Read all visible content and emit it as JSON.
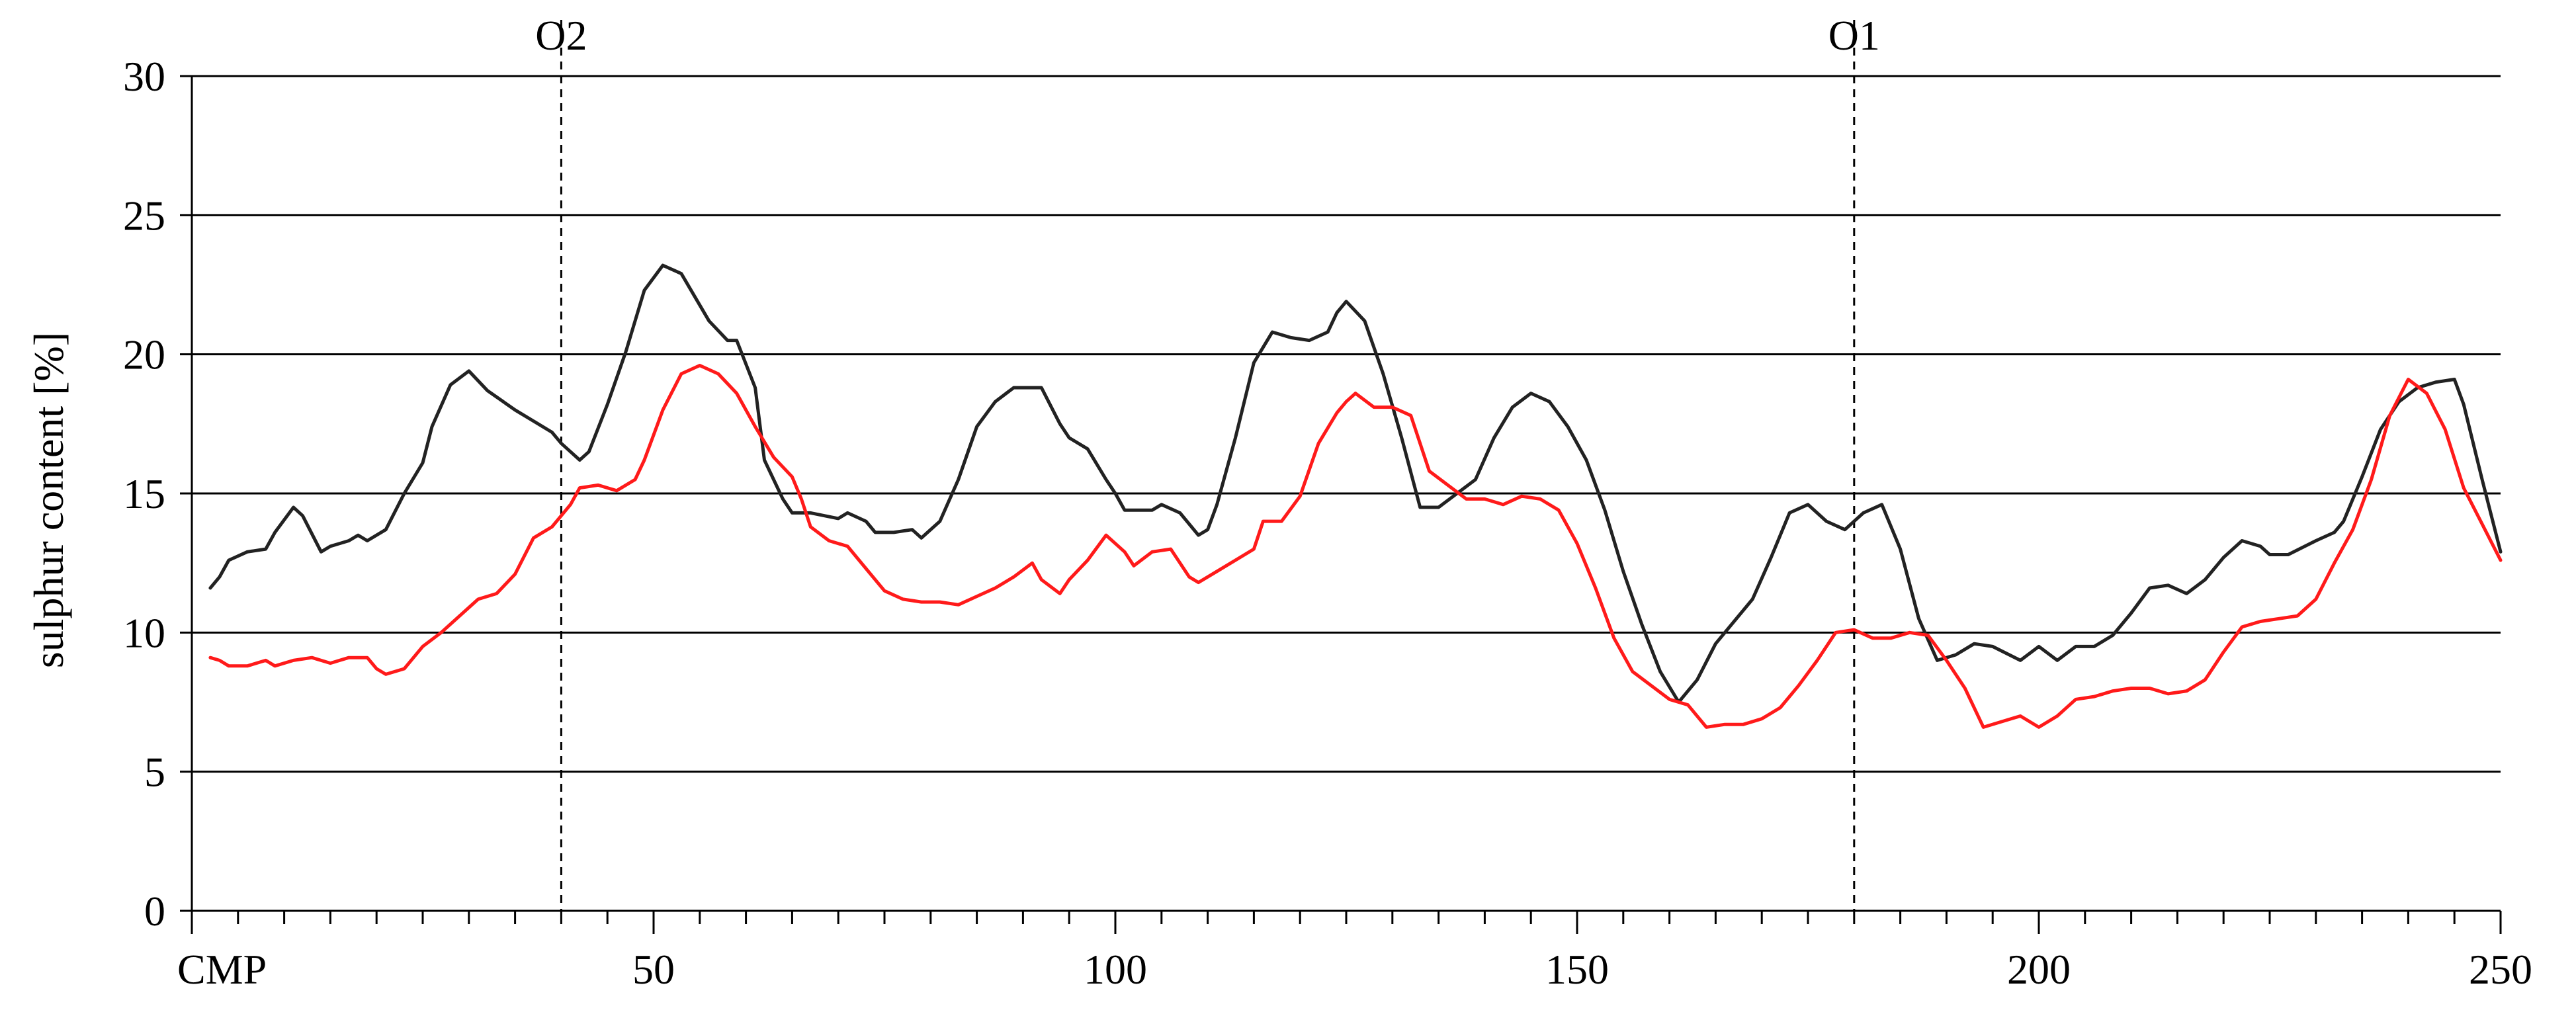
{
  "chart_data": {
    "type": "line",
    "title": "",
    "xlabel": "",
    "ylabel": "sulphur content [%]",
    "xlim": [
      0,
      250
    ],
    "ylim": [
      0,
      30
    ],
    "x_ticks": [
      0,
      50,
      100,
      150,
      200,
      250
    ],
    "x_tick_labels": [
      "CMP",
      "50",
      "100",
      "150",
      "200",
      "250"
    ],
    "x_minor_step": 5,
    "y_ticks": [
      0,
      5,
      10,
      15,
      20,
      25,
      30
    ],
    "grid": "horizontal",
    "markers": [
      {
        "label": "O2",
        "x": 40
      },
      {
        "label": "O1",
        "x": 180
      }
    ],
    "series": [
      {
        "color": "#222222",
        "points": [
          [
            2,
            11.6
          ],
          [
            3,
            12
          ],
          [
            4,
            12.6
          ],
          [
            6,
            12.9
          ],
          [
            8,
            13
          ],
          [
            9,
            13.6
          ],
          [
            11,
            14.5
          ],
          [
            12,
            14.2
          ],
          [
            14,
            12.9
          ],
          [
            15,
            13.1
          ],
          [
            17,
            13.3
          ],
          [
            18,
            13.5
          ],
          [
            19,
            13.3
          ],
          [
            21,
            13.7
          ],
          [
            23,
            15
          ],
          [
            25,
            16.1
          ],
          [
            26,
            17.4
          ],
          [
            28,
            18.9
          ],
          [
            30,
            19.4
          ],
          [
            32,
            18.7
          ],
          [
            35,
            18
          ],
          [
            37,
            17.6
          ],
          [
            39,
            17.2
          ],
          [
            40,
            16.8
          ],
          [
            42,
            16.2
          ],
          [
            43,
            16.5
          ],
          [
            45,
            18.2
          ],
          [
            47,
            20.1
          ],
          [
            49,
            22.3
          ],
          [
            51,
            23.2
          ],
          [
            53,
            22.9
          ],
          [
            56,
            21.2
          ],
          [
            58,
            20.5
          ],
          [
            59,
            20.5
          ],
          [
            61,
            18.8
          ],
          [
            62,
            16.2
          ],
          [
            64,
            14.8
          ],
          [
            65,
            14.3
          ],
          [
            67,
            14.3
          ],
          [
            70,
            14.1
          ],
          [
            71,
            14.3
          ],
          [
            73,
            14
          ],
          [
            74,
            13.6
          ],
          [
            76,
            13.6
          ],
          [
            78,
            13.7
          ],
          [
            79,
            13.4
          ],
          [
            81,
            14
          ],
          [
            83,
            15.5
          ],
          [
            85,
            17.4
          ],
          [
            87,
            18.3
          ],
          [
            89,
            18.8
          ],
          [
            92,
            18.8
          ],
          [
            94,
            17.5
          ],
          [
            95,
            17
          ],
          [
            97,
            16.6
          ],
          [
            99,
            15.5
          ],
          [
            100,
            15
          ],
          [
            101,
            14.4
          ],
          [
            104,
            14.4
          ],
          [
            105,
            14.6
          ],
          [
            107,
            14.3
          ],
          [
            109,
            13.5
          ],
          [
            110,
            13.7
          ],
          [
            111,
            14.6
          ],
          [
            113,
            17
          ],
          [
            115,
            19.7
          ],
          [
            117,
            20.8
          ],
          [
            119,
            20.6
          ],
          [
            121,
            20.5
          ],
          [
            123,
            20.8
          ],
          [
            124,
            21.5
          ],
          [
            125,
            21.9
          ],
          [
            127,
            21.2
          ],
          [
            129,
            19.3
          ],
          [
            131,
            17
          ],
          [
            133,
            14.5
          ],
          [
            135,
            14.5
          ],
          [
            137,
            15
          ],
          [
            139,
            15.5
          ],
          [
            141,
            17
          ],
          [
            143,
            18.1
          ],
          [
            145,
            18.6
          ],
          [
            147,
            18.3
          ],
          [
            149,
            17.4
          ],
          [
            151,
            16.2
          ],
          [
            153,
            14.4
          ],
          [
            155,
            12.2
          ],
          [
            157,
            10.3
          ],
          [
            159,
            8.6
          ],
          [
            161,
            7.5
          ],
          [
            163,
            8.3
          ],
          [
            165,
            9.6
          ],
          [
            167,
            10.4
          ],
          [
            169,
            11.2
          ],
          [
            171,
            12.7
          ],
          [
            173,
            14.3
          ],
          [
            175,
            14.6
          ],
          [
            177,
            14
          ],
          [
            179,
            13.7
          ],
          [
            181,
            14.3
          ],
          [
            183,
            14.6
          ],
          [
            185,
            13
          ],
          [
            187,
            10.5
          ],
          [
            189,
            9
          ],
          [
            191,
            9.2
          ],
          [
            193,
            9.6
          ],
          [
            195,
            9.5
          ],
          [
            198,
            9
          ],
          [
            200,
            9.5
          ],
          [
            202,
            9
          ],
          [
            204,
            9.5
          ],
          [
            206,
            9.5
          ],
          [
            208,
            9.9
          ],
          [
            210,
            10.7
          ],
          [
            212,
            11.6
          ],
          [
            214,
            11.7
          ],
          [
            216,
            11.4
          ],
          [
            218,
            11.9
          ],
          [
            220,
            12.7
          ],
          [
            222,
            13.3
          ],
          [
            224,
            13.1
          ],
          [
            225,
            12.8
          ],
          [
            227,
            12.8
          ],
          [
            230,
            13.3
          ],
          [
            232,
            13.6
          ],
          [
            233,
            14
          ],
          [
            235,
            15.6
          ],
          [
            237,
            17.3
          ],
          [
            239,
            18.3
          ],
          [
            241,
            18.8
          ],
          [
            243,
            19
          ],
          [
            245,
            19.1
          ],
          [
            246,
            18.2
          ],
          [
            248,
            15.5
          ],
          [
            250,
            12.9
          ]
        ]
      },
      {
        "color": "#ff1a1a",
        "points": [
          [
            2,
            9.1
          ],
          [
            3,
            9
          ],
          [
            4,
            8.8
          ],
          [
            6,
            8.8
          ],
          [
            8,
            9
          ],
          [
            9,
            8.8
          ],
          [
            11,
            9
          ],
          [
            13,
            9.1
          ],
          [
            15,
            8.9
          ],
          [
            17,
            9.1
          ],
          [
            19,
            9.1
          ],
          [
            20,
            8.7
          ],
          [
            21,
            8.5
          ],
          [
            23,
            8.7
          ],
          [
            25,
            9.5
          ],
          [
            27,
            10
          ],
          [
            29,
            10.6
          ],
          [
            31,
            11.2
          ],
          [
            33,
            11.4
          ],
          [
            35,
            12.1
          ],
          [
            37,
            13.4
          ],
          [
            39,
            13.8
          ],
          [
            41,
            14.6
          ],
          [
            42,
            15.2
          ],
          [
            44,
            15.3
          ],
          [
            46,
            15.1
          ],
          [
            48,
            15.5
          ],
          [
            49,
            16.2
          ],
          [
            51,
            18
          ],
          [
            53,
            19.3
          ],
          [
            55,
            19.6
          ],
          [
            57,
            19.3
          ],
          [
            59,
            18.6
          ],
          [
            61,
            17.4
          ],
          [
            63,
            16.3
          ],
          [
            65,
            15.6
          ],
          [
            66,
            14.8
          ],
          [
            67,
            13.8
          ],
          [
            69,
            13.3
          ],
          [
            71,
            13.1
          ],
          [
            73,
            12.3
          ],
          [
            75,
            11.5
          ],
          [
            77,
            11.2
          ],
          [
            79,
            11.1
          ],
          [
            81,
            11.1
          ],
          [
            83,
            11
          ],
          [
            85,
            11.3
          ],
          [
            87,
            11.6
          ],
          [
            89,
            12
          ],
          [
            91,
            12.5
          ],
          [
            92,
            11.9
          ],
          [
            94,
            11.4
          ],
          [
            95,
            11.9
          ],
          [
            97,
            12.6
          ],
          [
            99,
            13.5
          ],
          [
            101,
            12.9
          ],
          [
            102,
            12.4
          ],
          [
            104,
            12.9
          ],
          [
            106,
            13
          ],
          [
            108,
            12
          ],
          [
            109,
            11.8
          ],
          [
            111,
            12.2
          ],
          [
            113,
            12.6
          ],
          [
            115,
            13
          ],
          [
            116,
            14
          ],
          [
            118,
            14
          ],
          [
            120,
            14.9
          ],
          [
            122,
            16.8
          ],
          [
            124,
            17.9
          ],
          [
            125,
            18.3
          ],
          [
            126,
            18.6
          ],
          [
            128,
            18.1
          ],
          [
            130,
            18.1
          ],
          [
            132,
            17.8
          ],
          [
            134,
            15.8
          ],
          [
            136,
            15.3
          ],
          [
            138,
            14.8
          ],
          [
            140,
            14.8
          ],
          [
            142,
            14.6
          ],
          [
            144,
            14.9
          ],
          [
            146,
            14.8
          ],
          [
            148,
            14.4
          ],
          [
            150,
            13.2
          ],
          [
            152,
            11.6
          ],
          [
            154,
            9.8
          ],
          [
            156,
            8.6
          ],
          [
            158,
            8.1
          ],
          [
            160,
            7.6
          ],
          [
            162,
            7.4
          ],
          [
            164,
            6.6
          ],
          [
            166,
            6.7
          ],
          [
            168,
            6.7
          ],
          [
            170,
            6.9
          ],
          [
            172,
            7.3
          ],
          [
            174,
            8.1
          ],
          [
            176,
            9
          ],
          [
            178,
            10
          ],
          [
            180,
            10.1
          ],
          [
            182,
            9.8
          ],
          [
            184,
            9.8
          ],
          [
            186,
            10
          ],
          [
            188,
            9.9
          ],
          [
            190,
            9
          ],
          [
            192,
            8
          ],
          [
            194,
            6.6
          ],
          [
            196,
            6.8
          ],
          [
            198,
            7
          ],
          [
            200,
            6.6
          ],
          [
            202,
            7
          ],
          [
            204,
            7.6
          ],
          [
            206,
            7.7
          ],
          [
            208,
            7.9
          ],
          [
            210,
            8
          ],
          [
            212,
            8
          ],
          [
            214,
            7.8
          ],
          [
            216,
            7.9
          ],
          [
            218,
            8.3
          ],
          [
            220,
            9.3
          ],
          [
            222,
            10.2
          ],
          [
            224,
            10.4
          ],
          [
            226,
            10.5
          ],
          [
            228,
            10.6
          ],
          [
            230,
            11.2
          ],
          [
            232,
            12.5
          ],
          [
            234,
            13.7
          ],
          [
            236,
            15.5
          ],
          [
            238,
            17.8
          ],
          [
            240,
            19.1
          ],
          [
            242,
            18.6
          ],
          [
            244,
            17.3
          ],
          [
            246,
            15.2
          ],
          [
            248,
            13.9
          ],
          [
            250,
            12.6
          ]
        ]
      }
    ]
  }
}
